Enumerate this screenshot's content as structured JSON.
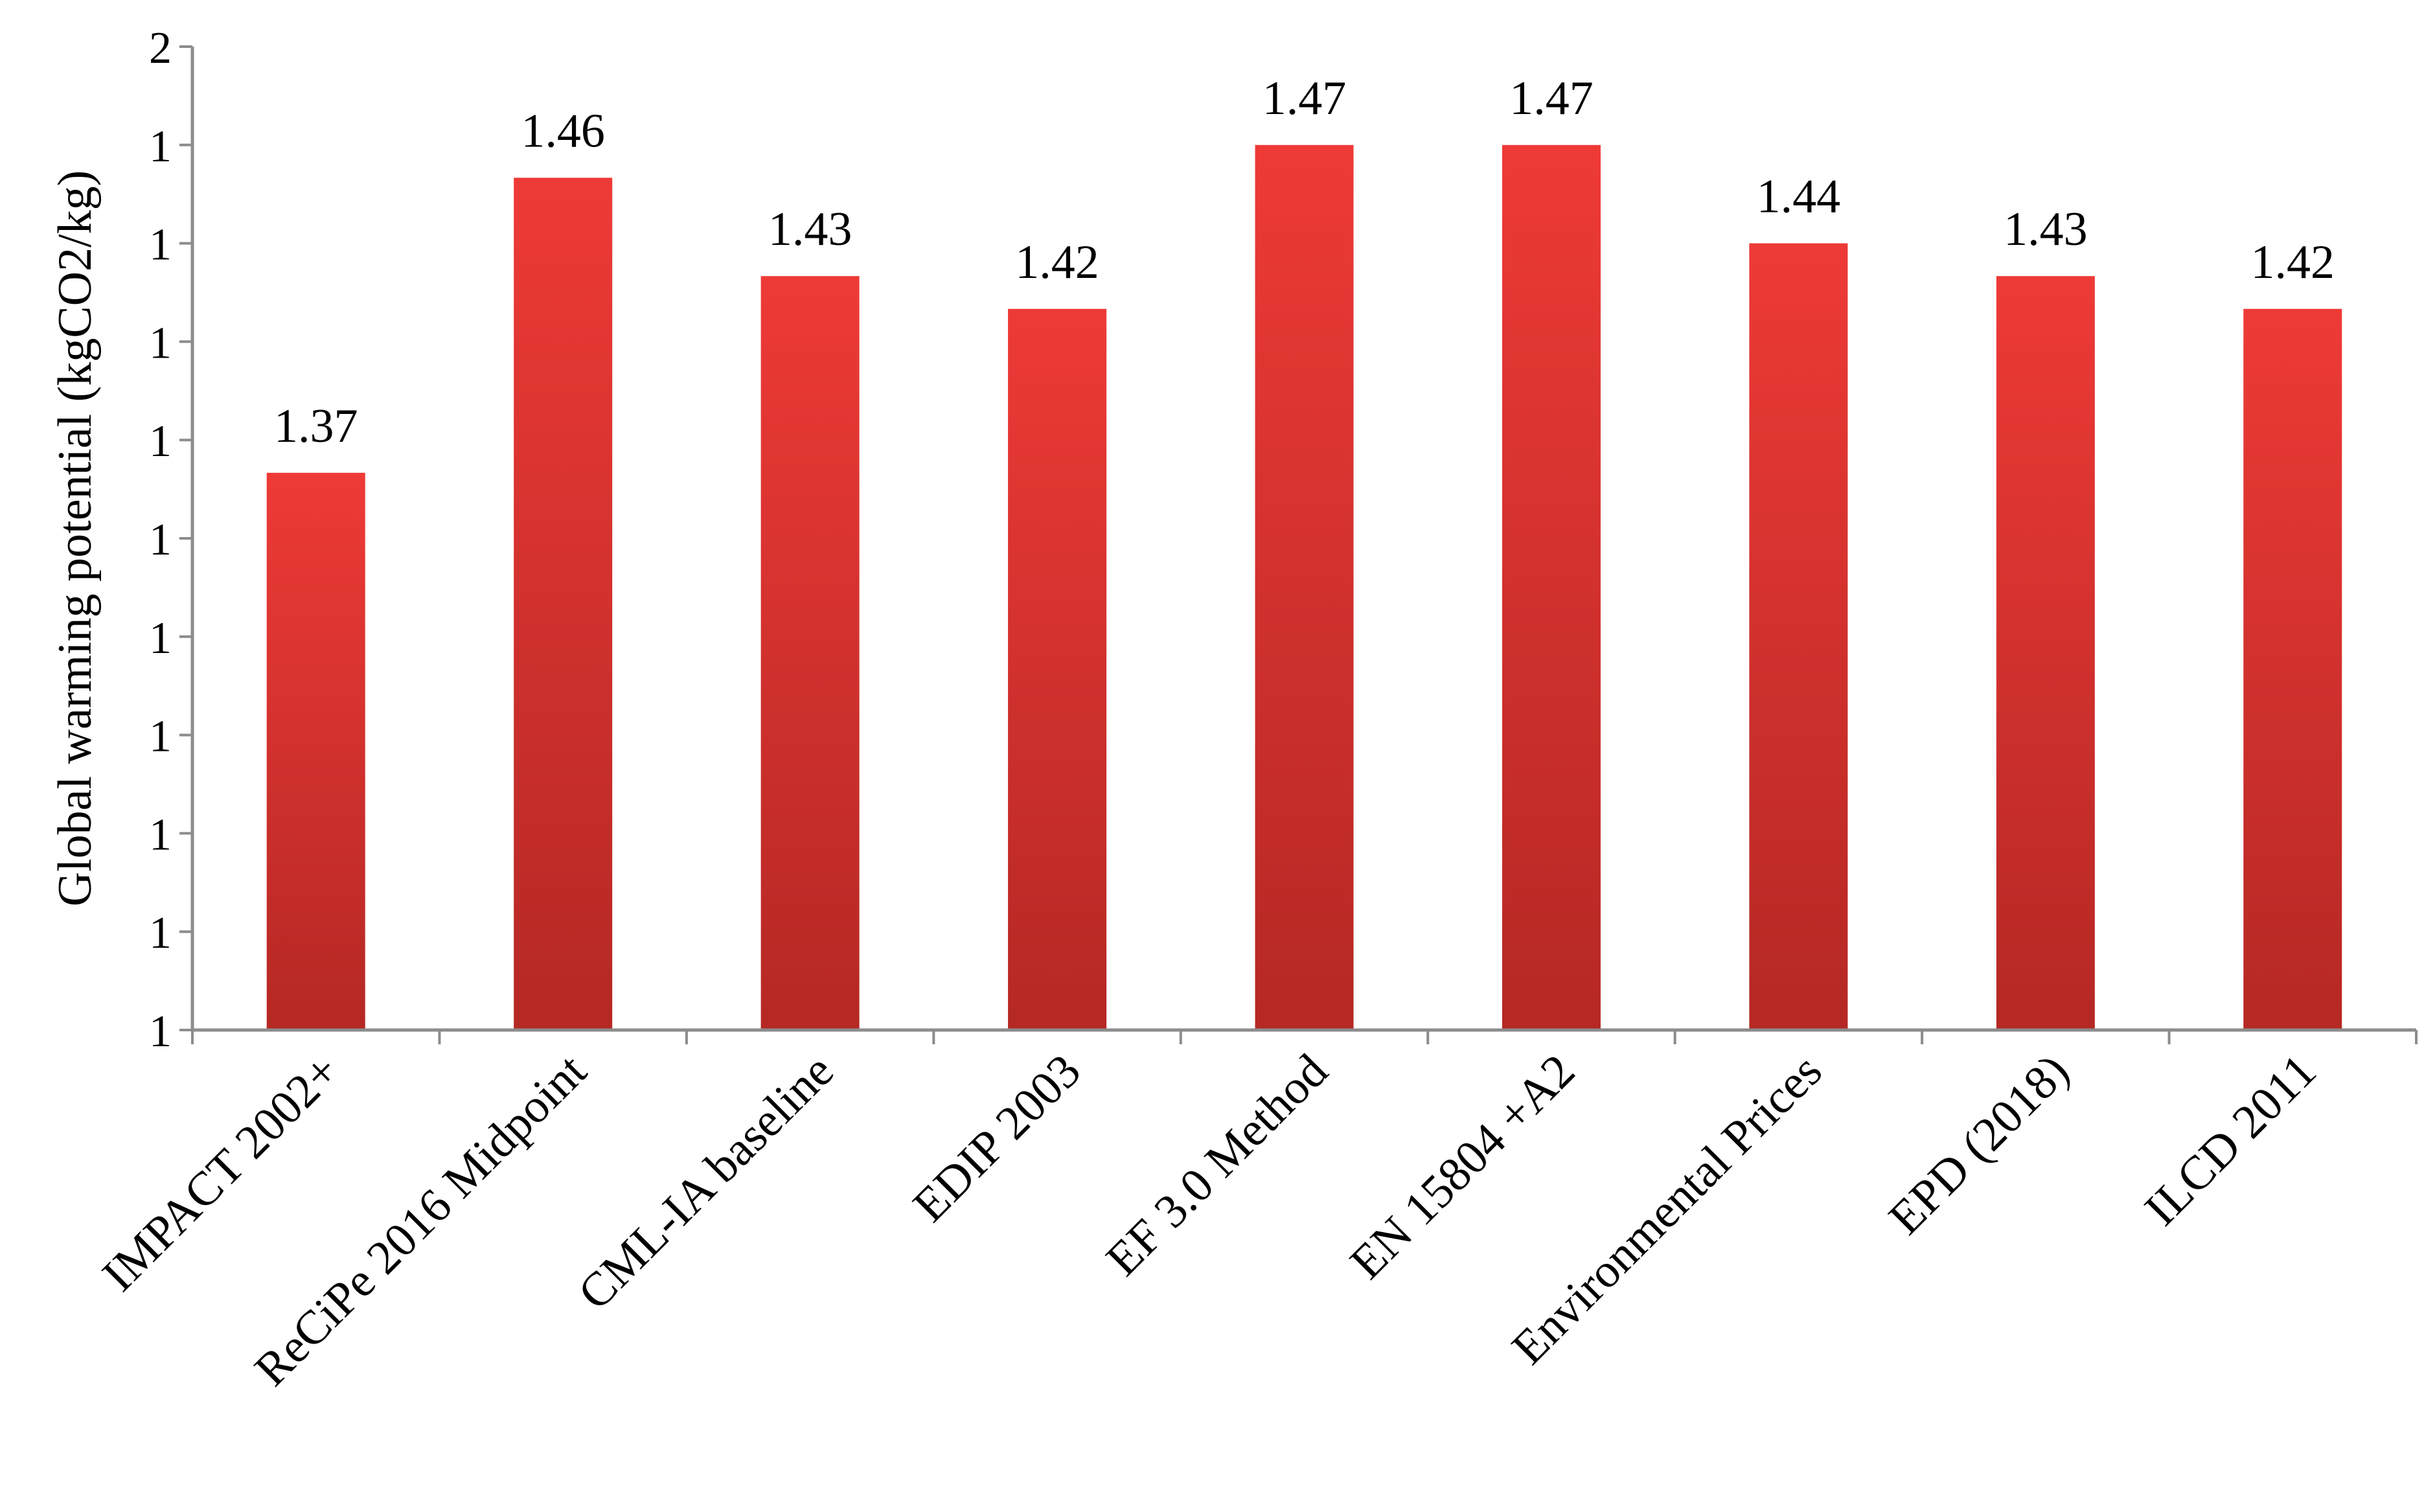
{
  "chart_data": {
    "type": "bar",
    "title": "",
    "xlabel": "",
    "ylabel": "Global warming potential (kgCO2/kg)",
    "categories": [
      "IMPACT 2002+",
      "ReCiPe 2016 Midpoint",
      "CML-IA baseline",
      "EDIP 2003",
      "EF 3.0 Method",
      "EN 15804 +A2",
      "Environmental Prices",
      "EPD (2018)",
      "ILCD 2011"
    ],
    "values": [
      1.37,
      1.46,
      1.43,
      1.42,
      1.47,
      1.47,
      1.44,
      1.43,
      1.42
    ],
    "data_labels": [
      "1.37",
      "1.46",
      "1.43",
      "1.42",
      "1.47",
      "1.47",
      "1.44",
      "1.43",
      "1.42"
    ],
    "ylim": [
      1.2,
      1.5
    ],
    "y_ticks": [
      1.2,
      1.23,
      1.26,
      1.29,
      1.32,
      1.35,
      1.38,
      1.41,
      1.44,
      1.47,
      1.5
    ],
    "y_tick_labels": [
      "1",
      "1",
      "1",
      "1",
      "1",
      "1",
      "1",
      "1",
      "1",
      "1",
      "2"
    ],
    "grid": false,
    "legend": "none",
    "colors": {
      "bar_top": "#ee3a37",
      "bar_bottom": "#b52824",
      "axis": "#8c8c8c",
      "text": "#000000"
    }
  }
}
